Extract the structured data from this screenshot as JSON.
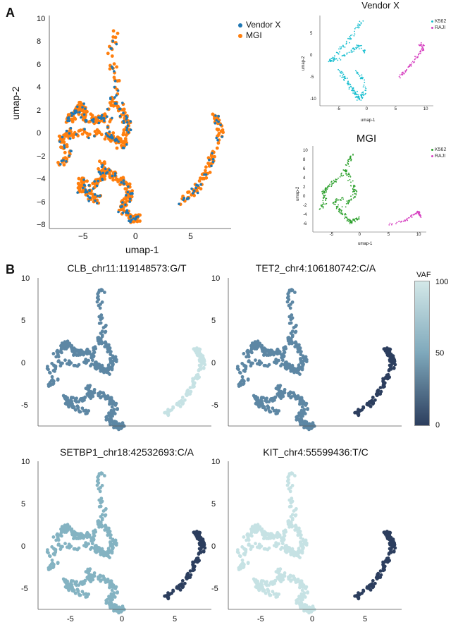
{
  "panels": {
    "a": "A",
    "b": "B"
  },
  "panel_a": {
    "xlabel": "umap-1",
    "ylabel": "umap-2",
    "x_ticks": [
      "−5",
      "0",
      "5"
    ],
    "y_ticks": [
      "10",
      "8",
      "6",
      "4",
      "2",
      "0",
      "−2",
      "−4",
      "−6",
      "−8"
    ],
    "legend": [
      {
        "label": "Vendor X",
        "color": "#1f77b4"
      },
      {
        "label": "MGI",
        "color": "#ff7f0e"
      }
    ],
    "vendor_plot": {
      "title": "Vendor X",
      "xlabel": "umap-1",
      "ylabel": "umap-2",
      "x_ticks": [
        "-5",
        "0",
        "5",
        "10"
      ],
      "y_ticks": [
        "5",
        "0",
        "-5",
        "-10"
      ],
      "legend": [
        {
          "label": "K562",
          "color": "#17becf"
        },
        {
          "label": "RAJI",
          "color": "#d63fc0"
        }
      ]
    },
    "mgi_plot": {
      "title": "MGI",
      "xlabel": "umap-1",
      "ylabel": "umap-2",
      "x_ticks": [
        "-5",
        "0",
        "5",
        "10"
      ],
      "y_ticks": [
        "10",
        "8",
        "6",
        "4",
        "2",
        "0",
        "-2",
        "-4",
        "-6"
      ],
      "legend": [
        {
          "label": "K562",
          "color": "#2ca02c"
        },
        {
          "label": "RAJI",
          "color": "#d63fc0"
        }
      ]
    }
  },
  "panel_b": {
    "colorbar": {
      "title": "VAF",
      "ticks": [
        "100",
        "50",
        "0"
      ],
      "low_color": "#2c3e5e",
      "high_color": "#d3e8e8"
    },
    "plots": [
      {
        "title": "CLB_chr11:119148573:G/T",
        "k562_color": "#5d87a4",
        "raji_color": "#c6e2e4"
      },
      {
        "title": "TET2_chr4:106180742:C/A",
        "k562_color": "#5d87a4",
        "raji_color": "#2c3e5e"
      },
      {
        "title": "SETBP1_chr18:42532693:C/A",
        "k562_color": "#84b3c2",
        "raji_color": "#2c3e5e"
      },
      {
        "title": "KIT_chr4:55599436:T/C",
        "k562_color": "#c6e2e4",
        "raji_color": "#2c3e5e"
      }
    ],
    "y_ticks": [
      "10",
      "5",
      "0",
      "-5"
    ],
    "x_ticks": [
      "-5",
      "0",
      "5"
    ]
  },
  "chart_data": [
    {
      "type": "scatter",
      "title": "",
      "xlabel": "umap-1",
      "ylabel": "umap-2",
      "xlim": [
        -8,
        8
      ],
      "ylim": [
        -8,
        10
      ],
      "series": [
        {
          "name": "Vendor X",
          "color": "#1f77b4"
        },
        {
          "name": "MGI",
          "color": "#ff7f0e"
        }
      ]
    },
    {
      "type": "scatter",
      "title": "Vendor X",
      "xlim": [
        -8,
        11
      ],
      "ylim": [
        -11,
        9
      ],
      "series": [
        {
          "name": "K562"
        },
        {
          "name": "RAJI"
        }
      ]
    },
    {
      "type": "scatter",
      "title": "MGI",
      "xlim": [
        -8,
        11
      ],
      "ylim": [
        -7,
        11
      ],
      "series": [
        {
          "name": "K562"
        },
        {
          "name": "RAJI"
        }
      ]
    },
    {
      "type": "scatter",
      "title": "CLB_chr11:119148573:G/T",
      "xlim": [
        -8,
        8
      ],
      "ylim": [
        -7,
        10
      ],
      "series": [
        {
          "name": "K562",
          "vaf": 55
        },
        {
          "name": "RAJI",
          "vaf": 95
        }
      ]
    },
    {
      "type": "scatter",
      "title": "TET2_chr4:106180742:C/A",
      "xlim": [
        -8,
        8
      ],
      "ylim": [
        -7,
        10
      ],
      "series": [
        {
          "name": "K562",
          "vaf": 55
        },
        {
          "name": "RAJI",
          "vaf": 5
        }
      ]
    },
    {
      "type": "scatter",
      "title": "SETBP1_chr18:42532693:C/A",
      "xlim": [
        -8,
        8
      ],
      "ylim": [
        -7,
        10
      ],
      "series": [
        {
          "name": "K562",
          "vaf": 70
        },
        {
          "name": "RAJI",
          "vaf": 5
        }
      ]
    },
    {
      "type": "scatter",
      "title": "KIT_chr4:55599436:T/C",
      "xlim": [
        -8,
        8
      ],
      "ylim": [
        -7,
        10
      ],
      "series": [
        {
          "name": "K562",
          "vaf": 95
        },
        {
          "name": "RAJI",
          "vaf": 5
        }
      ]
    }
  ]
}
